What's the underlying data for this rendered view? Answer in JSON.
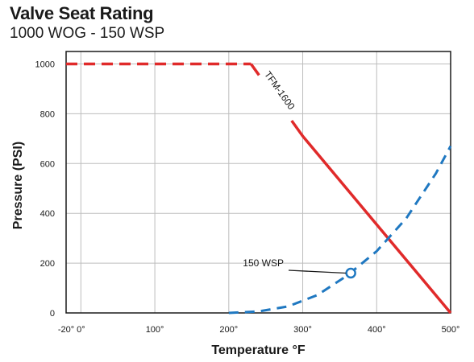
{
  "title": "Valve Seat Rating",
  "subtitle": "1000 WOG - 150 WSP",
  "chart_data": {
    "type": "line",
    "xlabel": "Temperature °F",
    "ylabel": "Pressure (PSI)",
    "xlim": [
      -20,
      500
    ],
    "ylim": [
      0,
      1050
    ],
    "x_ticks": [
      -20,
      0,
      100,
      200,
      300,
      400,
      500
    ],
    "x_tick_labels": [
      "-20°",
      "0°",
      "100°",
      "200°",
      "300°",
      "400°",
      "500°"
    ],
    "y_ticks": [
      0,
      200,
      400,
      600,
      800,
      1000
    ],
    "y_tick_labels": [
      "0",
      "200",
      "400",
      "600",
      "800",
      "1000"
    ],
    "grid": true,
    "series": [
      {
        "name": "TFM-1600",
        "color": "#e02a2a",
        "style": "dashed-then-solid",
        "x": [
          -20,
          230,
          300,
          500
        ],
        "y": [
          1000,
          1000,
          710,
          0
        ],
        "solid_from_x": 285
      },
      {
        "name": "150 WSP",
        "color": "#1f78c1",
        "style": "dashed",
        "x": [
          200,
          240,
          280,
          320,
          360,
          400,
          440,
          480,
          500
        ],
        "y": [
          0,
          6,
          26,
          72,
          150,
          248,
          380,
          560,
          670
        ],
        "marker": {
          "x": 365,
          "y": 160
        }
      }
    ],
    "annotations": [
      {
        "text": "TFM-1600",
        "series": "TFM-1600"
      },
      {
        "text": "150 WSP",
        "series": "150 WSP"
      }
    ]
  }
}
